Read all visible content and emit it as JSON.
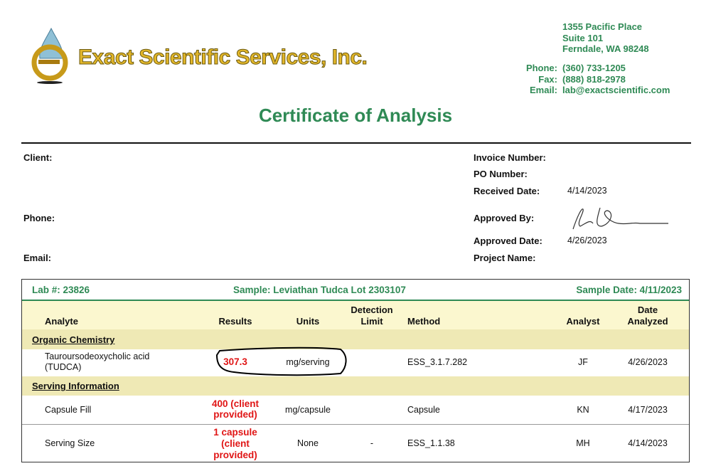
{
  "company": {
    "name": "Exact Scientific Services, Inc.",
    "address": [
      "1355 Pacific Place",
      "Suite 101",
      "Ferndale, WA 98248"
    ],
    "phone_label": "Phone:",
    "phone": "(360) 733-1205",
    "fax_label": "Fax:",
    "fax": "(888) 818-2978",
    "email_label": "Email:",
    "email": "lab@exactscientific.com"
  },
  "title": "Certificate of Analysis",
  "client": {
    "client_label": "Client:",
    "phone_label": "Phone:",
    "email_label": "Email:"
  },
  "info": {
    "invoice_label": "Invoice Number:",
    "po_label": "PO Number:",
    "received_label": "Received Date:",
    "received": "4/14/2023",
    "approved_by_label": "Approved By:",
    "approved_date_label": "Approved Date:",
    "approved_date": "4/26/2023",
    "project_label": "Project Name:"
  },
  "sample": {
    "lab": "Lab #: 23826",
    "sample": "Sample:  Leviathan Tudca Lot 2303107",
    "date": "Sample Date: 4/11/2023"
  },
  "columns": {
    "analyte": "Analyte",
    "results": "Results",
    "units": "Units",
    "detection": "Detection Limit",
    "method": "Method",
    "analyst": "Analyst",
    "date": "Date Analyzed"
  },
  "sections": [
    {
      "name": "Organic Chemistry",
      "rows": [
        {
          "analyte": "Tauroursodeoxycholic acid (TUDCA)",
          "result": "307.3",
          "units": "mg/serving",
          "detection": "",
          "method": "ESS_3.1.7.282",
          "analyst": "JF",
          "date": "4/26/2023"
        }
      ]
    },
    {
      "name": "Serving Information",
      "rows": [
        {
          "analyte": "Capsule Fill",
          "result": "400 (client provided)",
          "units": "mg/capsule",
          "detection": "",
          "method": "Capsule",
          "analyst": "KN",
          "date": "4/17/2023"
        },
        {
          "analyte": "Serving Size",
          "result": "1 capsule (client provided)",
          "units": "None",
          "detection": "-",
          "method": "ESS_1.1.38",
          "analyst": "MH",
          "date": "4/14/2023"
        }
      ]
    }
  ],
  "colors": {
    "brand_green": "#2f8a55",
    "result_red": "#e01515",
    "header_yellow": "#fbf7cf",
    "section_yellow": "#efe9b5"
  }
}
